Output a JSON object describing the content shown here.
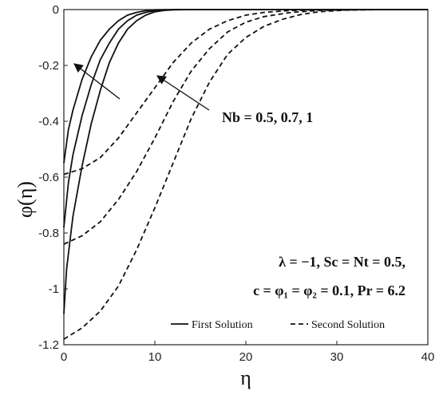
{
  "chart_data": {
    "type": "line",
    "xlabel": "η",
    "ylabel": "φ(η)",
    "xlim": [
      0,
      40
    ],
    "ylim": [
      -1.2,
      0
    ],
    "x_ticks": [
      "0",
      "10",
      "20",
      "30",
      "40"
    ],
    "y_ticks": [
      "0",
      "-0.2",
      "-0.4",
      "-0.6",
      "-0.8",
      "-1",
      "-1.2"
    ],
    "grid": false,
    "legend": {
      "position": "bottom-right",
      "entries": [
        {
          "label": "First Solution",
          "style": "solid"
        },
        {
          "label": "Second Solution",
          "style": "dashed"
        }
      ]
    },
    "annotations": {
      "nb": "Nb = 0.5, 0.7, 1",
      "params_line1": "λ = −1, Sc = Nt = 0.5,",
      "params_line2": "c = φ₁ = φ₂ = 0.1, Pr = 6.2"
    },
    "series": [
      {
        "group": "First Solution",
        "param": "0.5",
        "style": "solid",
        "points": [
          [
            0,
            -0.55
          ],
          [
            0.5,
            -0.43
          ],
          [
            1,
            -0.36
          ],
          [
            2,
            -0.25
          ],
          [
            3,
            -0.17
          ],
          [
            4,
            -0.11
          ],
          [
            5,
            -0.07
          ],
          [
            6,
            -0.04
          ],
          [
            7,
            -0.02
          ],
          [
            8,
            -0.01
          ],
          [
            9,
            -0.004
          ],
          [
            10,
            -0.001
          ],
          [
            12,
            0
          ],
          [
            40,
            0
          ]
        ]
      },
      {
        "group": "First Solution",
        "param": "0.7",
        "style": "solid",
        "points": [
          [
            0,
            -0.78
          ],
          [
            0.5,
            -0.62
          ],
          [
            1,
            -0.52
          ],
          [
            2,
            -0.38
          ],
          [
            3,
            -0.27
          ],
          [
            4,
            -0.18
          ],
          [
            5,
            -0.12
          ],
          [
            6,
            -0.07
          ],
          [
            7,
            -0.04
          ],
          [
            8,
            -0.02
          ],
          [
            9,
            -0.01
          ],
          [
            10,
            -0.004
          ],
          [
            11,
            -0.001
          ],
          [
            13,
            0
          ],
          [
            40,
            0
          ]
        ]
      },
      {
        "group": "First Solution",
        "param": "1",
        "style": "solid",
        "points": [
          [
            0,
            -1.09
          ],
          [
            0.3,
            -0.93
          ],
          [
            0.7,
            -0.82
          ],
          [
            1,
            -0.74
          ],
          [
            2,
            -0.56
          ],
          [
            3,
            -0.41
          ],
          [
            4,
            -0.29
          ],
          [
            5,
            -0.19
          ],
          [
            6,
            -0.12
          ],
          [
            7,
            -0.07
          ],
          [
            8,
            -0.04
          ],
          [
            9,
            -0.02
          ],
          [
            10,
            -0.008
          ],
          [
            11,
            -0.003
          ],
          [
            12,
            -0.001
          ],
          [
            14,
            0
          ],
          [
            40,
            0
          ]
        ]
      },
      {
        "group": "Second Solution",
        "param": "0.5",
        "style": "dashed",
        "points": [
          [
            0,
            -0.59
          ],
          [
            2,
            -0.57
          ],
          [
            4,
            -0.53
          ],
          [
            6,
            -0.46
          ],
          [
            8,
            -0.37
          ],
          [
            10,
            -0.28
          ],
          [
            12,
            -0.19
          ],
          [
            14,
            -0.12
          ],
          [
            16,
            -0.07
          ],
          [
            18,
            -0.04
          ],
          [
            20,
            -0.02
          ],
          [
            22,
            -0.01
          ],
          [
            25,
            -0.003
          ],
          [
            28,
            -0.001
          ],
          [
            32,
            0
          ],
          [
            40,
            0
          ]
        ]
      },
      {
        "group": "Second Solution",
        "param": "0.7",
        "style": "dashed",
        "points": [
          [
            0,
            -0.84
          ],
          [
            2,
            -0.81
          ],
          [
            4,
            -0.76
          ],
          [
            6,
            -0.68
          ],
          [
            8,
            -0.58
          ],
          [
            10,
            -0.46
          ],
          [
            12,
            -0.33
          ],
          [
            14,
            -0.22
          ],
          [
            16,
            -0.14
          ],
          [
            18,
            -0.08
          ],
          [
            20,
            -0.045
          ],
          [
            22,
            -0.025
          ],
          [
            25,
            -0.01
          ],
          [
            28,
            -0.003
          ],
          [
            32,
            -0.001
          ],
          [
            35,
            0
          ],
          [
            40,
            0
          ]
        ]
      },
      {
        "group": "Second Solution",
        "param": "1",
        "style": "dashed",
        "points": [
          [
            0,
            -1.18
          ],
          [
            2,
            -1.14
          ],
          [
            4,
            -1.08
          ],
          [
            6,
            -0.99
          ],
          [
            8,
            -0.86
          ],
          [
            10,
            -0.71
          ],
          [
            12,
            -0.55
          ],
          [
            14,
            -0.39
          ],
          [
            16,
            -0.26
          ],
          [
            18,
            -0.16
          ],
          [
            20,
            -0.1
          ],
          [
            22,
            -0.06
          ],
          [
            24,
            -0.035
          ],
          [
            26,
            -0.018
          ],
          [
            28,
            -0.008
          ],
          [
            31,
            -0.002
          ],
          [
            35,
            0
          ],
          [
            40,
            0
          ]
        ]
      }
    ]
  }
}
